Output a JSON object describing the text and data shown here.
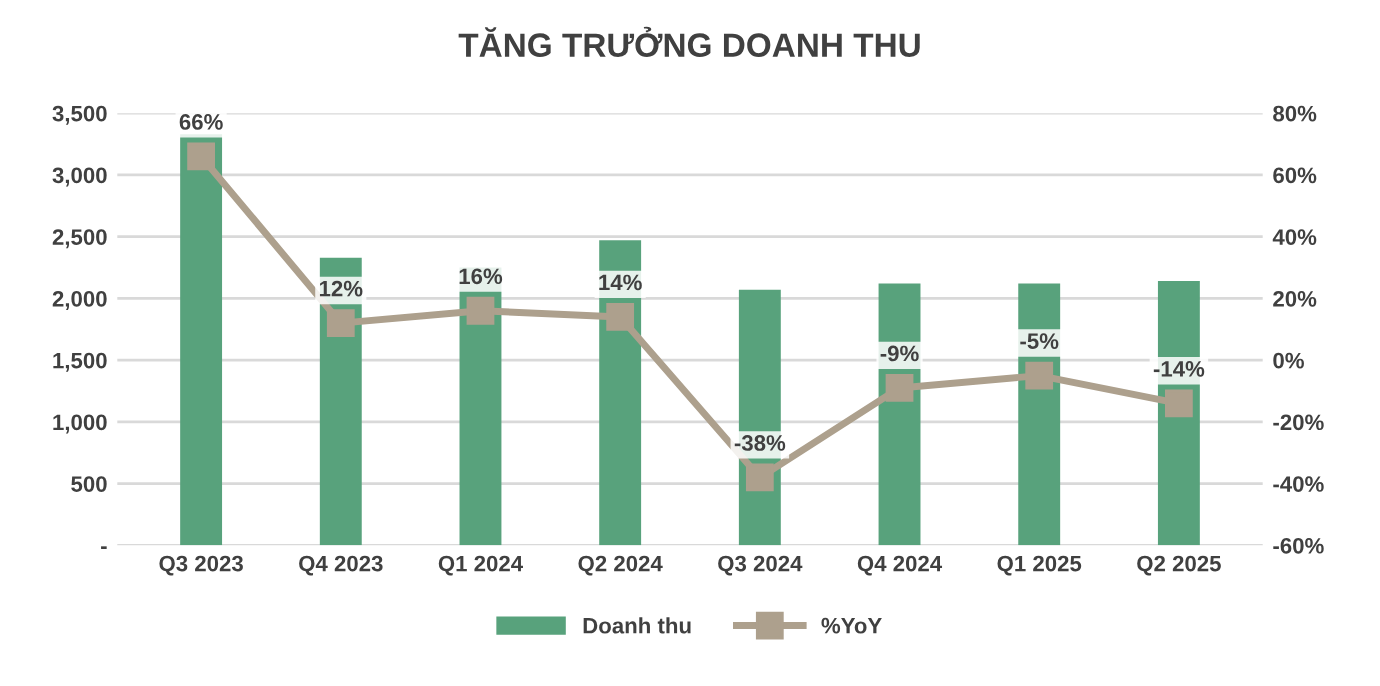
{
  "chart_data": {
    "type": "bar",
    "title": "TĂNG TRƯỞNG DOANH THU",
    "categories": [
      "Q3 2023",
      "Q4 2023",
      "Q1 2024",
      "Q2 2024",
      "Q3 2024",
      "Q4 2024",
      "Q1 2025",
      "Q2 2025"
    ],
    "series": [
      {
        "name": "Doanh thu",
        "color": "#58a27c",
        "values": [
          3330,
          2330,
          2250,
          2470,
          2070,
          2120,
          2120,
          2140
        ]
      },
      {
        "name": "%YoY",
        "type": "line",
        "axis": "y2",
        "color": "#ada08d",
        "marker": "square",
        "values": [
          66,
          12,
          16,
          14,
          -38,
          -9,
          -5,
          -14
        ],
        "value_labels": [
          "66%",
          "12%",
          "16%",
          "14%",
          "-38%",
          "-9%",
          "-5%",
          "-14%"
        ]
      }
    ],
    "ylim": [
      0,
      3500
    ],
    "yticks": [
      {
        "value": 0,
        "label": "-"
      },
      {
        "value": 500,
        "label": "500"
      },
      {
        "value": 1000,
        "label": "1,000"
      },
      {
        "value": 1500,
        "label": "1,500"
      },
      {
        "value": 2000,
        "label": "2,000"
      },
      {
        "value": 2500,
        "label": "2,500"
      },
      {
        "value": 3000,
        "label": "3,000"
      },
      {
        "value": 3500,
        "label": "3,500"
      }
    ],
    "y2lim": [
      -60,
      80
    ],
    "y2ticks": [
      {
        "value": -60,
        "label": "-60%"
      },
      {
        "value": -40,
        "label": "-40%"
      },
      {
        "value": -20,
        "label": "-20%"
      },
      {
        "value": 0,
        "label": "0%"
      },
      {
        "value": 20,
        "label": "20%"
      },
      {
        "value": 40,
        "label": "40%"
      },
      {
        "value": 60,
        "label": "60%"
      },
      {
        "value": 80,
        "label": "80%"
      }
    ],
    "grid": "y",
    "legend": "bottom"
  }
}
